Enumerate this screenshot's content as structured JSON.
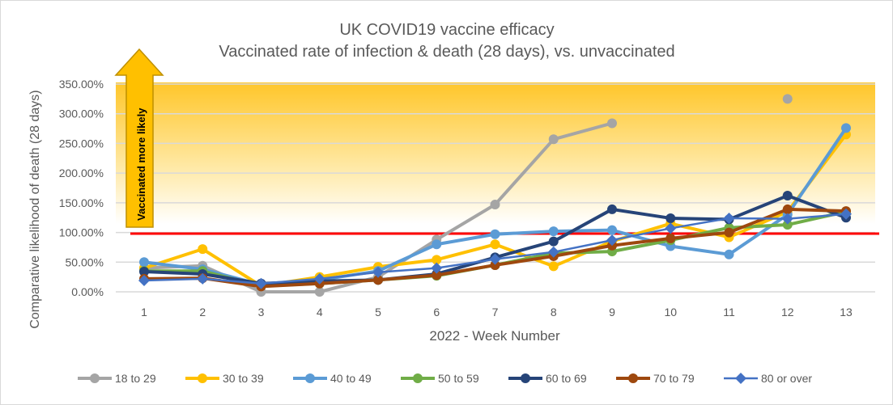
{
  "chart_data": {
    "type": "line",
    "title": "UK COVID19 vaccine efficacy",
    "subtitle": "Vaccinated rate of infection & death (28 days), vs. unvaccinated",
    "xlabel": "2022 - Week Number",
    "ylabel": "Comparative likelihood of death (28 days)",
    "categories": [
      "1",
      "2",
      "3",
      "4",
      "5",
      "6",
      "7",
      "8",
      "9",
      "10",
      "11",
      "12",
      "13"
    ],
    "ylim": [
      0,
      350
    ],
    "yticks": [
      "0.00%",
      "50.00%",
      "100.00%",
      "150.00%",
      "200.00%",
      "250.00%",
      "300.00%",
      "350.00%"
    ],
    "grid": true,
    "legend_position": "bottom",
    "reference_line": {
      "value": 98,
      "color": "#ff0000"
    },
    "annotation": "Vaccinated more likely",
    "series": [
      {
        "name": "18 to 29",
        "color": "#a5a5a5",
        "marker": "circle",
        "values": [
          40,
          44,
          0,
          0,
          25,
          88,
          147,
          257,
          284,
          null,
          null,
          325,
          null
        ]
      },
      {
        "name": "30 to 39",
        "color": "#ffc000",
        "marker": "circle",
        "values": [
          40,
          72,
          10,
          25,
          42,
          54,
          80,
          43,
          85,
          115,
          92,
          135,
          265
        ]
      },
      {
        "name": "40 to 49",
        "color": "#5b9bd5",
        "marker": "circle",
        "values": [
          50,
          38,
          12,
          20,
          35,
          80,
          97,
          102,
          104,
          77,
          63,
          130,
          276
        ]
      },
      {
        "name": "50 to 59",
        "color": "#70ad47",
        "marker": "circle",
        "values": [
          35,
          35,
          10,
          14,
          20,
          27,
          45,
          65,
          68,
          87,
          108,
          113,
          135
        ]
      },
      {
        "name": "60 to 69",
        "color": "#264478",
        "marker": "circle",
        "values": [
          34,
          30,
          14,
          18,
          20,
          30,
          58,
          85,
          139,
          124,
          122,
          162,
          125
        ]
      },
      {
        "name": "70 to 79",
        "color": "#9e480e",
        "marker": "circle",
        "values": [
          22,
          23,
          9,
          14,
          20,
          28,
          45,
          60,
          78,
          90,
          100,
          139,
          136
        ]
      },
      {
        "name": "80 or over",
        "color": "#4472c4",
        "marker": "diamond",
        "values": [
          19,
          22,
          14,
          22,
          33,
          40,
          55,
          67,
          87,
          107,
          124,
          123,
          131
        ]
      }
    ]
  }
}
